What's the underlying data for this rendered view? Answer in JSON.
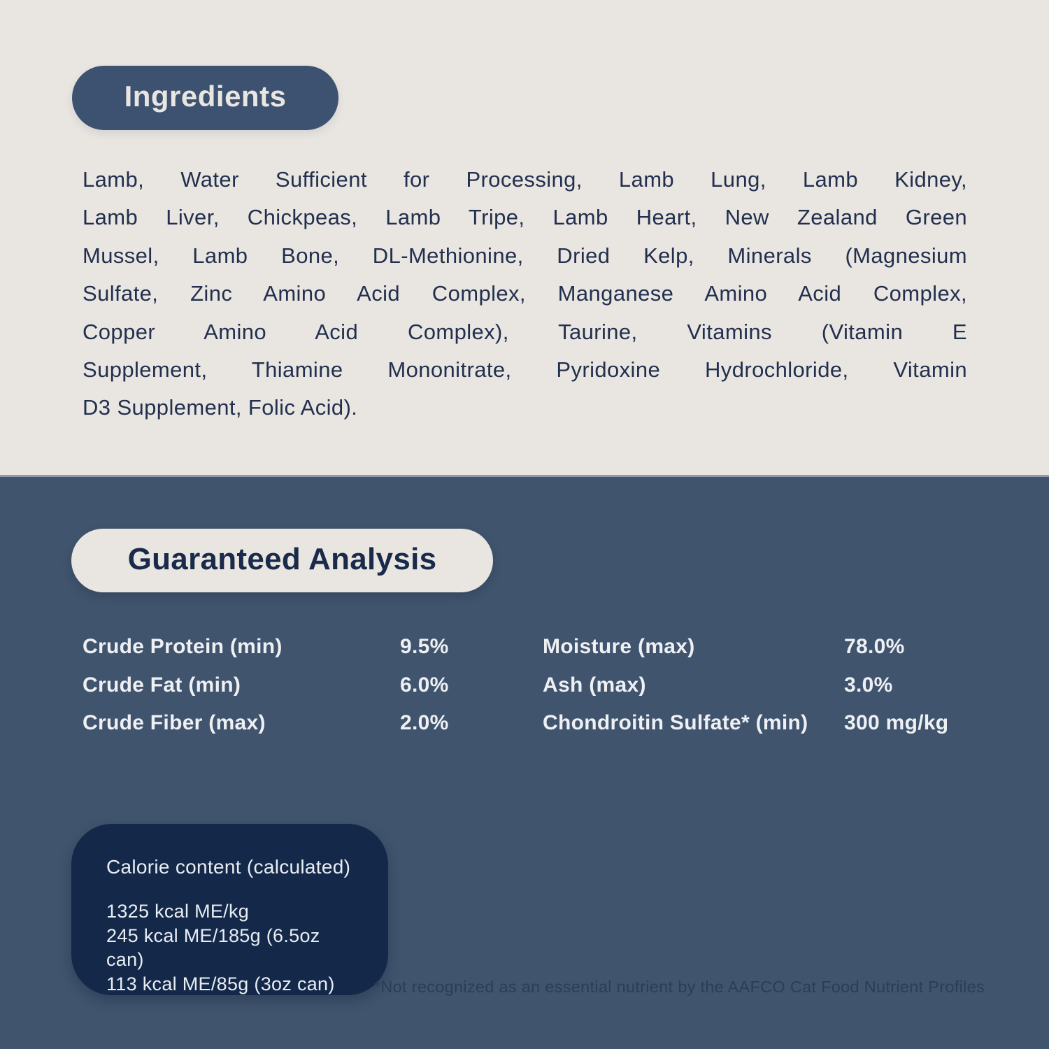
{
  "ingredients": {
    "title": "Ingredients",
    "lines": [
      "Lamb, Water Sufficient for Processing, Lamb Lung, Lamb Kidney,",
      "Lamb Liver, Chickpeas, Lamb Tripe, Lamb Heart, New Zealand Green",
      "Mussel, Lamb Bone, DL-Methionine, Dried Kelp, Minerals (Magnesium",
      "Sulfate, Zinc Amino Acid Complex, Manganese Amino Acid Complex,",
      "Copper Amino Acid Complex), Taurine, Vitamins (Vitamin E",
      "Supplement, Thiamine Mononitrate, Pyridoxine Hydrochloride, Vitamin",
      "D3 Supplement, Folic Acid)."
    ]
  },
  "guaranteed_analysis": {
    "title": "Guaranteed Analysis",
    "rows": [
      {
        "left_label": "Crude Protein (min)",
        "left_value": "9.5%",
        "right_label": "Moisture (max)",
        "right_value": "78.0%"
      },
      {
        "left_label": "Crude Fat (min)",
        "left_value": "6.0%",
        "right_label": "Ash (max)",
        "right_value": "3.0%"
      },
      {
        "left_label": "Crude Fiber (max)",
        "left_value": "2.0%",
        "right_label": "Chondroitin Sulfate* (min)",
        "right_value": "300 mg/kg"
      }
    ]
  },
  "calorie_content": {
    "title": "Calorie content (calculated)",
    "lines": [
      "1325 kcal ME/kg",
      "245 kcal ME/185g (6.5oz can)",
      "113 kcal ME/85g (3oz can)"
    ]
  },
  "footnote": "*Not recognized as an essential nutrient by the AAFCO Cat Food Nutrient Profiles",
  "colors": {
    "cream": "#e9e6e1",
    "ink_navy": "#222f4e",
    "section_blue": "#40546e",
    "pill_navy": "#3d5270",
    "calorie_box_navy": "#14294a",
    "table_text": "#eef0f3",
    "footnote_text": "#2b3d59"
  }
}
